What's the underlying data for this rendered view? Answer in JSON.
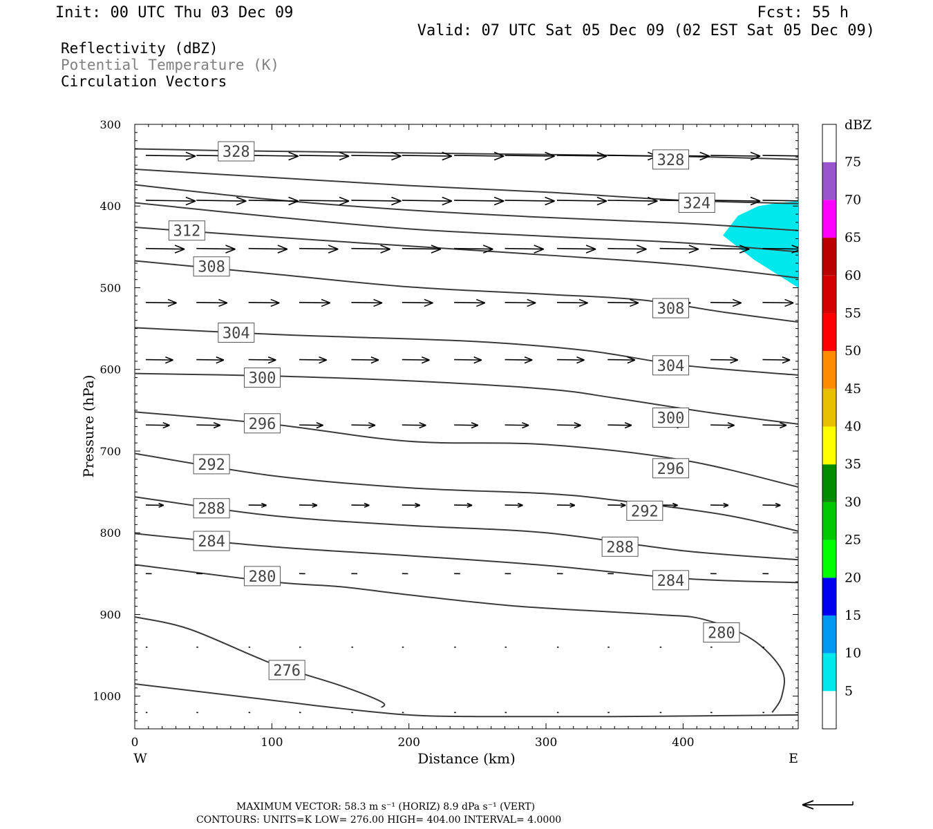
{
  "header": {
    "init": "Init: 00 UTC Thu 03 Dec 09",
    "fcst": "Fcst:   55 h",
    "valid": "Valid: 07 UTC Sat 05 Dec 09 (02 EST Sat 05 Dec 09)",
    "fields": [
      {
        "label": "Reflectivity (dBZ)",
        "color": "#000000"
      },
      {
        "label": "Potential Temperature (K)",
        "color": "#808080"
      },
      {
        "label": "Circulation Vectors",
        "color": "#000000"
      }
    ]
  },
  "chart_data": {
    "type": "cross-section",
    "xlabel": "Distance (km)",
    "ylabel": "Pressure (hPa)",
    "xlim": [
      0,
      484
    ],
    "ylim": [
      1040,
      300
    ],
    "y_scale": "linear, inverted",
    "x_ticks": [
      0,
      100,
      200,
      300,
      400
    ],
    "y_ticks": [
      300,
      400,
      500,
      600,
      700,
      800,
      900,
      1000
    ],
    "x_end_labels": {
      "left": "W",
      "right": "E"
    },
    "colorbar": {
      "title": "dBZ",
      "levels": [
        5,
        10,
        15,
        20,
        25,
        30,
        35,
        40,
        45,
        50,
        55,
        60,
        65,
        70,
        75
      ],
      "colors": [
        "#00e8ec",
        "#0099f2",
        "#0000f0",
        "#00ff00",
        "#00c800",
        "#008c00",
        "#ffff00",
        "#e8c000",
        "#ff8c00",
        "#ff0000",
        "#d40000",
        "#bb0000",
        "#ff00ff",
        "#9955cc",
        "#ffffff"
      ]
    },
    "reflectivity_regions": [
      {
        "level": 5,
        "color": "#00e8ec",
        "points": [
          [
            429,
            436
          ],
          [
            440,
            412
          ],
          [
            455,
            400
          ],
          [
            470,
            396
          ],
          [
            484,
            394
          ],
          [
            484,
            500
          ],
          [
            470,
            485
          ],
          [
            452,
            466
          ]
        ]
      }
    ],
    "theta_contours": [
      {
        "theta": 328,
        "points": [
          [
            0,
            330
          ],
          [
            60,
            332
          ],
          [
            150,
            334
          ],
          [
            250,
            336
          ],
          [
            350,
            338
          ],
          [
            420,
            340
          ],
          [
            484,
            343
          ]
        ]
      },
      {
        "theta": 324,
        "points": [
          [
            0,
            355
          ],
          [
            100,
            365
          ],
          [
            200,
            375
          ],
          [
            300,
            383
          ],
          [
            400,
            393
          ],
          [
            484,
            397
          ]
        ]
      },
      {
        "theta": 320,
        "points": [
          [
            0,
            374
          ],
          [
            100,
            392
          ],
          [
            200,
            405
          ],
          [
            300,
            414
          ],
          [
            400,
            421
          ],
          [
            484,
            430
          ]
        ]
      },
      {
        "theta": 316,
        "points": [
          [
            0,
            396
          ],
          [
            100,
            413
          ],
          [
            200,
            428
          ],
          [
            300,
            437
          ],
          [
            400,
            445
          ],
          [
            484,
            456
          ]
        ]
      },
      {
        "theta": 312,
        "points": [
          [
            0,
            426
          ],
          [
            100,
            438
          ],
          [
            200,
            449
          ],
          [
            300,
            460
          ],
          [
            400,
            472
          ],
          [
            484,
            488
          ]
        ]
      },
      {
        "theta": 308,
        "points": [
          [
            0,
            467
          ],
          [
            100,
            483
          ],
          [
            200,
            499
          ],
          [
            300,
            508
          ],
          [
            370,
            515
          ],
          [
            430,
            530
          ],
          [
            484,
            542
          ]
        ]
      },
      {
        "theta": 304,
        "points": [
          [
            0,
            549
          ],
          [
            100,
            557
          ],
          [
            150,
            560
          ],
          [
            250,
            566
          ],
          [
            330,
            577
          ],
          [
            400,
            595
          ],
          [
            484,
            607
          ]
        ]
      },
      {
        "theta": 300,
        "points": [
          [
            0,
            605
          ],
          [
            100,
            608
          ],
          [
            200,
            614
          ],
          [
            300,
            624
          ],
          [
            350,
            635
          ],
          [
            420,
            653
          ],
          [
            484,
            667
          ]
        ]
      },
      {
        "theta": 296,
        "points": [
          [
            0,
            652
          ],
          [
            100,
            667
          ],
          [
            200,
            688
          ],
          [
            300,
            692
          ],
          [
            400,
            711
          ],
          [
            484,
            744
          ]
        ]
      },
      {
        "theta": 292,
        "points": [
          [
            0,
            703
          ],
          [
            100,
            730
          ],
          [
            200,
            745
          ],
          [
            300,
            752
          ],
          [
            350,
            760
          ],
          [
            430,
            778
          ],
          [
            484,
            798
          ]
        ]
      },
      {
        "theta": 288,
        "points": [
          [
            0,
            756
          ],
          [
            100,
            779
          ],
          [
            200,
            791
          ],
          [
            300,
            800
          ],
          [
            400,
            822
          ],
          [
            484,
            833
          ]
        ]
      },
      {
        "theta": 284,
        "points": [
          [
            0,
            801
          ],
          [
            100,
            817
          ],
          [
            200,
            828
          ],
          [
            300,
            840
          ],
          [
            400,
            856
          ],
          [
            484,
            861
          ]
        ]
      },
      {
        "theta": 280,
        "points": [
          [
            0,
            839
          ],
          [
            100,
            860
          ],
          [
            150,
            866
          ],
          [
            200,
            876
          ],
          [
            280,
            890
          ],
          [
            380,
            900
          ],
          [
            415,
            906
          ],
          [
            450,
            930
          ],
          [
            472,
            968
          ],
          [
            472,
            1000
          ],
          [
            465,
            1020
          ]
        ]
      },
      {
        "theta": 276,
        "points": [
          [
            0,
            903
          ],
          [
            40,
            918
          ],
          [
            100,
            960
          ],
          [
            150,
            987
          ],
          [
            180,
            1007
          ],
          [
            180,
            1014
          ]
        ]
      },
      {
        "theta": 272,
        "points": [
          [
            0,
            985
          ],
          [
            100,
            1005
          ],
          [
            150,
            1015
          ],
          [
            200,
            1023
          ],
          [
            250,
            1025
          ],
          [
            350,
            1025
          ],
          [
            484,
            1023
          ]
        ]
      }
    ],
    "contour_labels": [
      {
        "text": "328",
        "x": 74,
        "y": 333
      },
      {
        "text": "328",
        "x": 391,
        "y": 343
      },
      {
        "text": "324",
        "x": 410,
        "y": 396
      },
      {
        "text": "312",
        "x": 38,
        "y": 430
      },
      {
        "text": "308",
        "x": 56,
        "y": 474
      },
      {
        "text": "308",
        "x": 391,
        "y": 525
      },
      {
        "text": "304",
        "x": 74,
        "y": 555
      },
      {
        "text": "304",
        "x": 391,
        "y": 595
      },
      {
        "text": "300",
        "x": 93,
        "y": 610
      },
      {
        "text": "300",
        "x": 391,
        "y": 659
      },
      {
        "text": "296",
        "x": 93,
        "y": 666
      },
      {
        "text": "296",
        "x": 391,
        "y": 721
      },
      {
        "text": "292",
        "x": 56,
        "y": 716
      },
      {
        "text": "292",
        "x": 372,
        "y": 773
      },
      {
        "text": "288",
        "x": 56,
        "y": 770
      },
      {
        "text": "288",
        "x": 354,
        "y": 817
      },
      {
        "text": "284",
        "x": 56,
        "y": 810
      },
      {
        "text": "284",
        "x": 391,
        "y": 858
      },
      {
        "text": "280",
        "x": 93,
        "y": 853
      },
      {
        "text": "280",
        "x": 428,
        "y": 922
      },
      {
        "text": "276",
        "x": 111,
        "y": 968
      }
    ],
    "vector_rows": [
      {
        "p": 338,
        "u": 1.0
      },
      {
        "p": 393,
        "u": 1.0
      },
      {
        "p": 452,
        "u": 0.78
      },
      {
        "p": 518,
        "u": 0.62
      },
      {
        "p": 588,
        "u": 0.55
      },
      {
        "p": 668,
        "u": 0.48
      },
      {
        "p": 766,
        "u": 0.36
      },
      {
        "p": 850,
        "u": 0.12
      },
      {
        "p": 940,
        "u": 0.03
      },
      {
        "p": 1020,
        "u": 0.02
      }
    ],
    "vector_x_positions": [
      8,
      45,
      83,
      120,
      158,
      195,
      233,
      270,
      308,
      345,
      383,
      420,
      458
    ],
    "reference_vector": {
      "direction": "westward"
    }
  },
  "footer": {
    "max_vector": "MAXIMUM VECTOR:  58.3 m s⁻¹ (HORIZ)          8.9 dPa s⁻¹ (VERT)",
    "contours": "CONTOURS:  UNITS=K  LOW=   276.00        HIGH=   404.00       INTERVAL=     4.0000"
  }
}
